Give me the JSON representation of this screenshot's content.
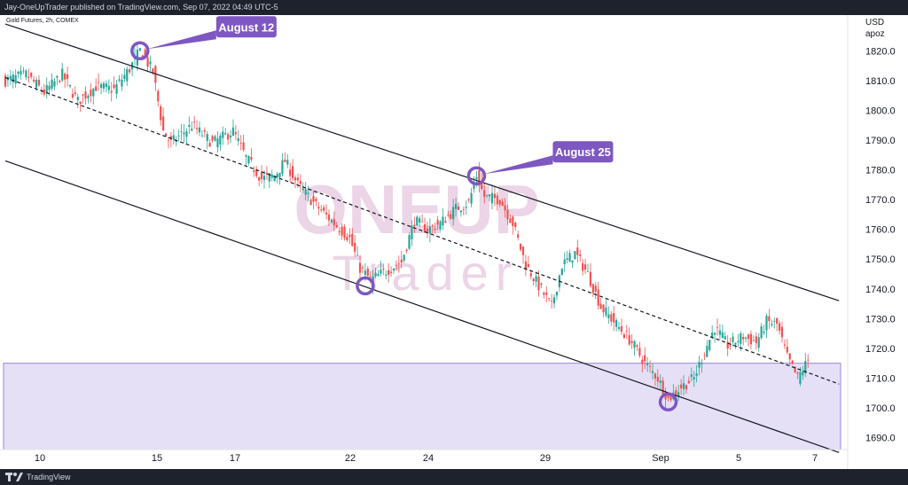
{
  "header": {
    "publisher_line": "Jay-OneUpTrader published on TradingView.com, Sep 07, 2022 04:49 UTC-5"
  },
  "footer": {
    "brand": "TradingView"
  },
  "symbol_line": "Gold Futures, 2h, COMEX",
  "watermark": {
    "line1": "ONEUP",
    "line2": "Trader"
  },
  "currency": {
    "line1": "USD",
    "line2": "apoz"
  },
  "colors": {
    "up": "#26a69a",
    "down": "#ef5350",
    "accent": "#7e57c2",
    "zone_fill": "#e1daf4",
    "zone_border": "#9b87d4",
    "watermark": "#ecd5e7"
  },
  "chart_data": {
    "type": "candlestick",
    "timeframe": "2h",
    "ylim": [
      1686,
      1832
    ],
    "y_ticks": [
      1690,
      1700,
      1710,
      1720,
      1730,
      1740,
      1750,
      1760,
      1770,
      1780,
      1790,
      1800,
      1810,
      1820
    ],
    "x_ticks": [
      "10",
      "15",
      "17",
      "22",
      "24",
      "29",
      "Sep",
      "5",
      "7"
    ],
    "anchor_closes": [
      [
        0,
        1810
      ],
      [
        8,
        1812
      ],
      [
        15,
        1806
      ],
      [
        22,
        1812
      ],
      [
        28,
        1803
      ],
      [
        35,
        1808
      ],
      [
        42,
        1807
      ],
      [
        48,
        1814
      ],
      [
        52,
        1820
      ],
      [
        57,
        1813
      ],
      [
        61,
        1793
      ],
      [
        64,
        1789
      ],
      [
        72,
        1795
      ],
      [
        80,
        1789
      ],
      [
        88,
        1793
      ],
      [
        93,
        1784
      ],
      [
        99,
        1777
      ],
      [
        104,
        1778
      ],
      [
        108,
        1783
      ],
      [
        113,
        1775
      ],
      [
        120,
        1768
      ],
      [
        127,
        1762
      ],
      [
        133,
        1757
      ],
      [
        137,
        1747
      ],
      [
        141,
        1743
      ],
      [
        147,
        1746
      ],
      [
        153,
        1749
      ],
      [
        158,
        1763
      ],
      [
        163,
        1760
      ],
      [
        168,
        1762
      ],
      [
        174,
        1767
      ],
      [
        179,
        1769
      ],
      [
        182,
        1778
      ],
      [
        185,
        1771
      ],
      [
        191,
        1770
      ],
      [
        196,
        1762
      ],
      [
        201,
        1748
      ],
      [
        206,
        1741
      ],
      [
        211,
        1734
      ],
      [
        215,
        1748
      ],
      [
        220,
        1752
      ],
      [
        225,
        1745
      ],
      [
        230,
        1734
      ],
      [
        236,
        1728
      ],
      [
        242,
        1722
      ],
      [
        247,
        1715
      ],
      [
        252,
        1710
      ],
      [
        256,
        1703
      ],
      [
        261,
        1707
      ],
      [
        266,
        1710
      ],
      [
        270,
        1719
      ],
      [
        274,
        1727
      ],
      [
        279,
        1721
      ],
      [
        285,
        1724
      ],
      [
        290,
        1722
      ],
      [
        294,
        1729
      ],
      [
        298,
        1728
      ],
      [
        302,
        1717
      ],
      [
        306,
        1710
      ],
      [
        310,
        1716
      ]
    ],
    "channel": {
      "upper": [
        [
          0,
          1829
        ],
        [
          322,
          1736
        ]
      ],
      "middle": [
        [
          0,
          1811
        ],
        [
          322,
          1708
        ]
      ],
      "lower": [
        [
          0,
          1783
        ],
        [
          322,
          1685
        ]
      ]
    },
    "support_zone": {
      "from": 1686,
      "to": 1715
    },
    "touch_points": [
      {
        "i": 52,
        "price": 1820,
        "label": "August 12"
      },
      {
        "i": 139,
        "price": 1741,
        "label": ""
      },
      {
        "i": 182,
        "price": 1778,
        "label": "August 25"
      },
      {
        "i": 256,
        "price": 1702,
        "label": ""
      }
    ],
    "annotations": [
      "August 12",
      "August 25"
    ]
  }
}
